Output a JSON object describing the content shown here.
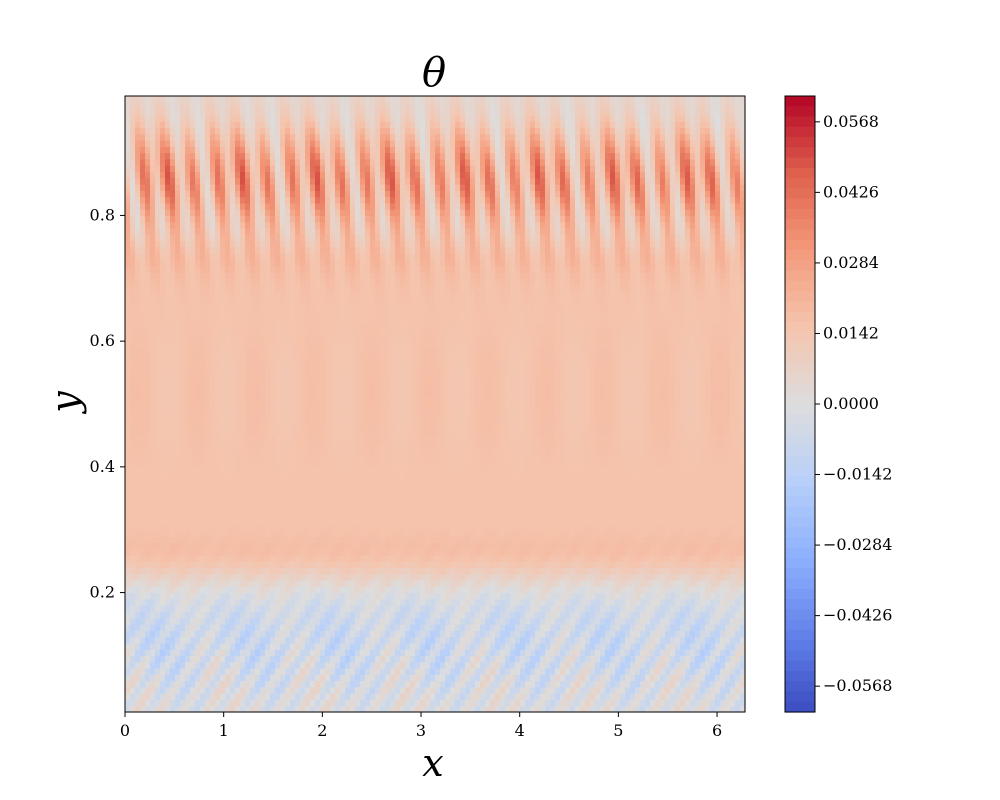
{
  "chart_data": {
    "type": "heatmap",
    "title": "θ",
    "xlabel": "x",
    "ylabel": "y",
    "xlim": [
      0,
      6.2832
    ],
    "ylim": [
      0.01,
      0.99
    ],
    "x_ticks": [
      0,
      1,
      2,
      3,
      4,
      5,
      6
    ],
    "x_tick_labels": [
      "0",
      "1",
      "2",
      "3",
      "4",
      "5",
      "6"
    ],
    "y_ticks": [
      0.2,
      0.4,
      0.6,
      0.8
    ],
    "y_tick_labels": [
      "0.2",
      "0.4",
      "0.6",
      "0.8"
    ],
    "colormap": "coolwarm",
    "color_range": [
      -0.062,
      0.062
    ],
    "colorbar_ticks": [
      0.0568,
      0.0426,
      0.0284,
      0.0142,
      0.0,
      -0.0142,
      -0.0284,
      -0.0426,
      -0.0568
    ],
    "colorbar_tick_labels": [
      "0.0568",
      "0.0426",
      "0.0284",
      "0.0142",
      "0.0000",
      "−0.0142",
      "−0.0284",
      "−0.0426",
      "−0.0568"
    ],
    "field_description_by_band": [
      {
        "y_range": [
          0.96,
          0.99
        ],
        "mean_value": 0.002
      },
      {
        "y_range": [
          0.7,
          0.96
        ],
        "mean_value": 0.03,
        "oscillation_amplitude": 0.025
      },
      {
        "y_range": [
          0.3,
          0.7
        ],
        "mean_value": 0.016
      },
      {
        "y_range": [
          0.2,
          0.3
        ],
        "mean_value": 0.008,
        "oscillation_amplitude": 0.004
      },
      {
        "y_range": [
          0.01,
          0.2
        ],
        "mean_value": -0.002,
        "oscillation_amplitude": 0.012
      }
    ]
  },
  "colors": {
    "cold": "#3b4cc0",
    "neutral": "#dddddd",
    "warm": "#b40426"
  }
}
